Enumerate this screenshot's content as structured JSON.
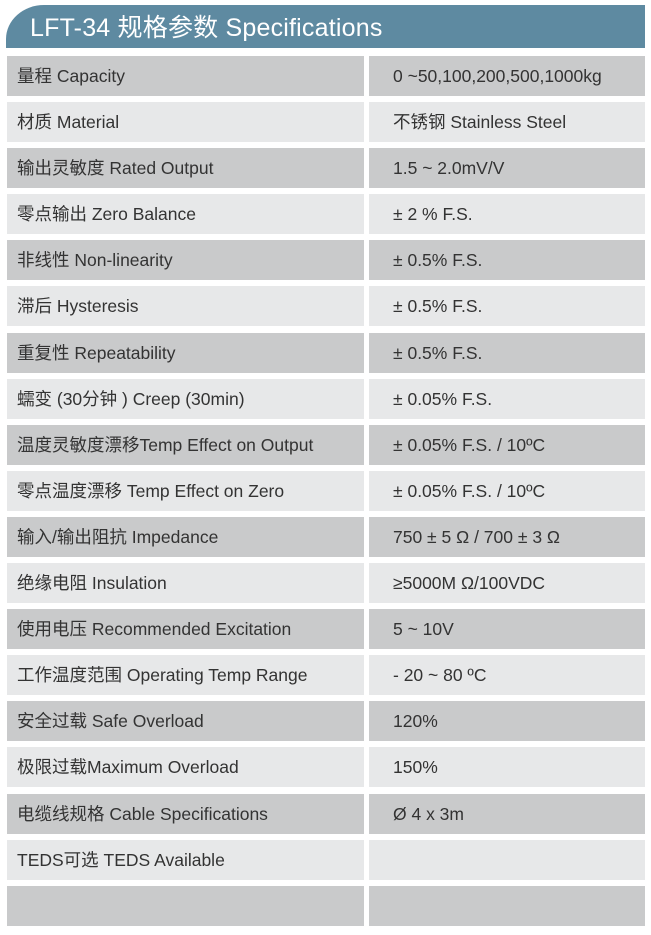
{
  "header": {
    "title": "LFT-34 规格参数 Specifications"
  },
  "rows": [
    {
      "label": "量程 Capacity",
      "value": "0 ~50,100,200,500,1000kg"
    },
    {
      "label": "材质 Material",
      "value": "不锈钢 Stainless Steel"
    },
    {
      "label": "输出灵敏度 Rated Output",
      "value": "1.5 ~ 2.0mV/V"
    },
    {
      "label": "零点输出  Zero Balance",
      "value": "± 2 % F.S."
    },
    {
      "label": "非线性 Non-linearity",
      "value": "± 0.5% F.S."
    },
    {
      "label": "滞后 Hysteresis",
      "value": "± 0.5% F.S."
    },
    {
      "label": "重复性 Repeatability",
      "value": "± 0.5% F.S."
    },
    {
      "label": "蠕变 (30分钟 ) Creep (30min)",
      "value": "± 0.05% F.S."
    },
    {
      "label": "温度灵敏度漂移Temp Effect on Output",
      "value": "± 0.05% F.S. / 10ºC"
    },
    {
      "label": "零点温度漂移 Temp Effect on Zero",
      "value": "± 0.05% F.S. / 10ºC"
    },
    {
      "label": "输入/输出阻抗 Impedance",
      "value": "750 ± 5 Ω  / 700 ± 3 Ω"
    },
    {
      "label": "绝缘电阻  Insulation",
      "value": "≥5000M Ω/100VDC"
    },
    {
      "label": "使用电压 Recommended Excitation",
      "value": "5 ~ 10V"
    },
    {
      "label": "工作温度范围 Operating Temp  Range",
      "value": "- 20 ~ 80 ºC"
    },
    {
      "label": "安全过载 Safe Overload",
      "value": "120%"
    },
    {
      "label": "极限过载Maximum Overload",
      "value": "150%"
    },
    {
      "label": "电缆线规格 Cable Specifications",
      "value": "Ø 4 x 3m"
    },
    {
      "label": "TEDS可选 TEDS Available",
      "value": ""
    },
    {
      "label": "",
      "value": ""
    }
  ]
}
